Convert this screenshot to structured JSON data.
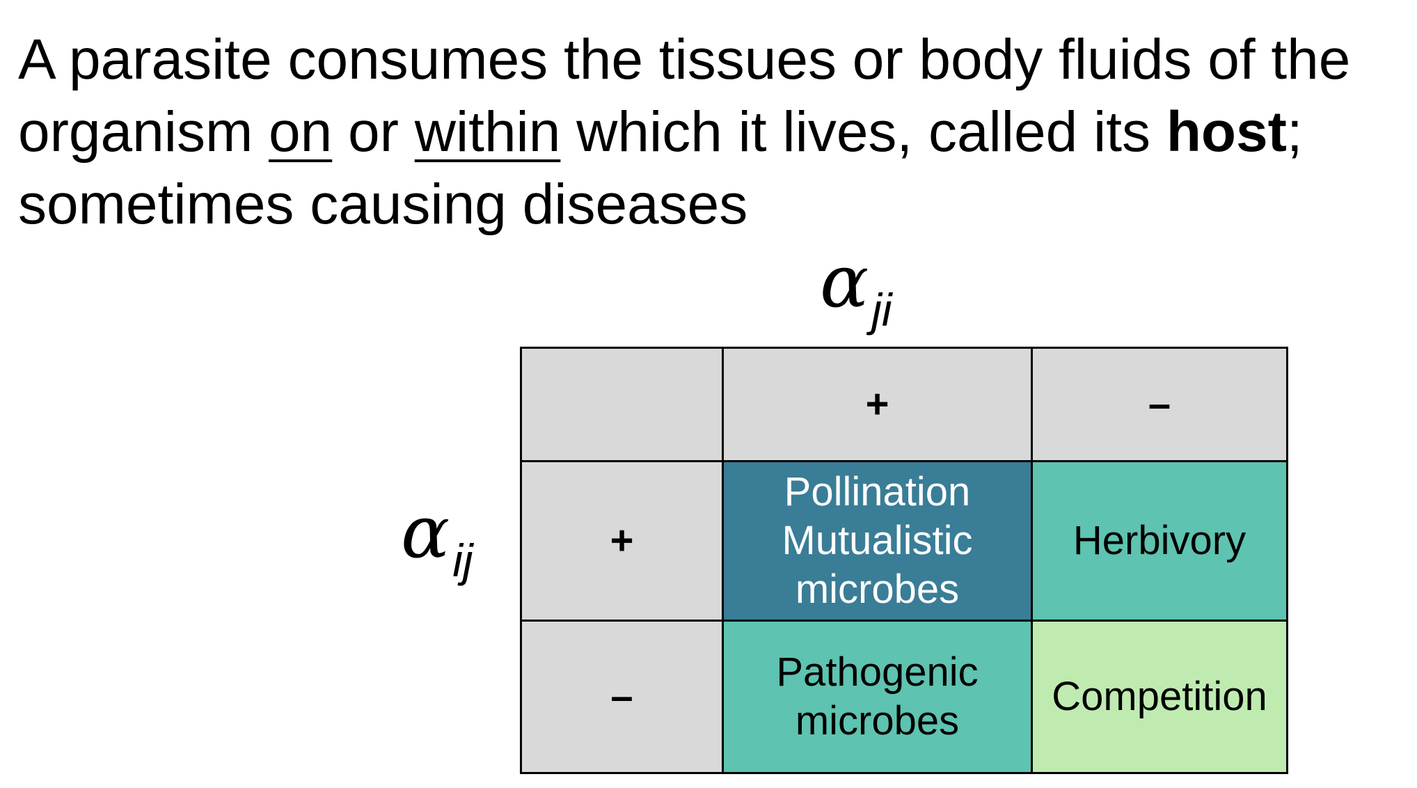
{
  "paragraph": {
    "part1": "A parasite consumes the tissues or body fluids of the organism ",
    "on": "on",
    "part2": " or ",
    "within": "within",
    "part3": " which it lives, called its ",
    "host": "host",
    "part4": "; sometimes causing diseases"
  },
  "labels": {
    "column_symbol": "α",
    "column_subscript": "ji",
    "row_symbol": "α",
    "row_subscript": "ij"
  },
  "matrix": {
    "column_signs": [
      "+",
      "–"
    ],
    "row_signs": [
      "+",
      "–"
    ],
    "cells": [
      [
        "Pollination\nMutualistic\nmicrobes",
        "Herbivory"
      ],
      [
        "Pathogenic\nmicrobes",
        "Competition"
      ]
    ],
    "colors": {
      "header_gray": "#d9d9d9",
      "dark_teal": "#3a7d97",
      "teal": "#5ec3b0",
      "light_green": "#bfebb0",
      "white_text": "#ffffff",
      "black_text": "#000000"
    }
  }
}
